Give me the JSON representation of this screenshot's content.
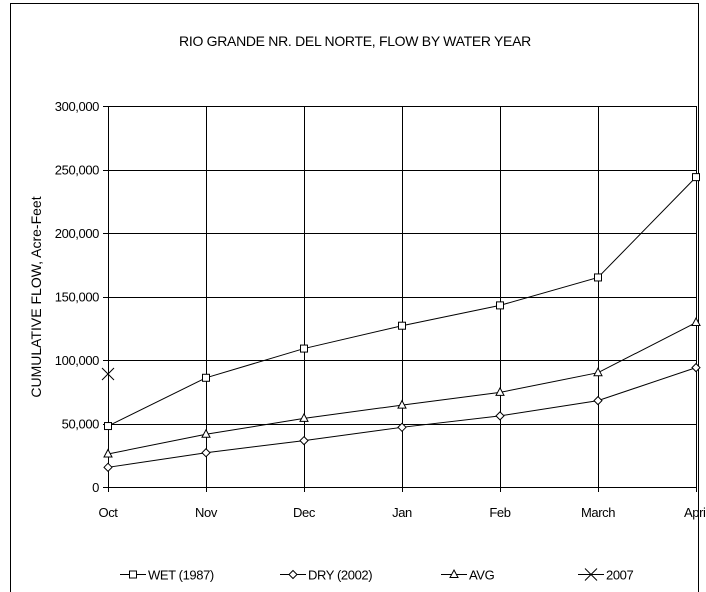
{
  "chart_data": {
    "type": "line",
    "title": "RIO GRANDE NR. DEL NORTE, FLOW BY WATER YEAR",
    "xlabel": "",
    "ylabel": "CUMULATIVE FLOW, Acre-Feet",
    "categories": [
      "Oct",
      "Nov",
      "Dec",
      "Jan",
      "Feb",
      "March",
      "April"
    ],
    "y_ticks": [
      "0",
      "50,000",
      "100,000",
      "150,000",
      "200,000",
      "250,000",
      "300,000"
    ],
    "ylim": [
      0,
      300000
    ],
    "grid": true,
    "legend": "bottom",
    "series": [
      {
        "name": "WET (1987)",
        "marker": "square",
        "values": [
          48000,
          86000,
          109000,
          127000,
          143000,
          165000,
          244000
        ]
      },
      {
        "name": "DRY (2002)",
        "marker": "diamond",
        "values": [
          15500,
          27000,
          36500,
          47000,
          56000,
          68000,
          94000
        ]
      },
      {
        "name": "AVG",
        "marker": "triangle",
        "values": [
          26000,
          41500,
          54000,
          64500,
          74500,
          90000,
          129500
        ]
      },
      {
        "name": "2007",
        "marker": "x",
        "values": [
          89000,
          null,
          null,
          null,
          null,
          null,
          null
        ]
      }
    ]
  }
}
